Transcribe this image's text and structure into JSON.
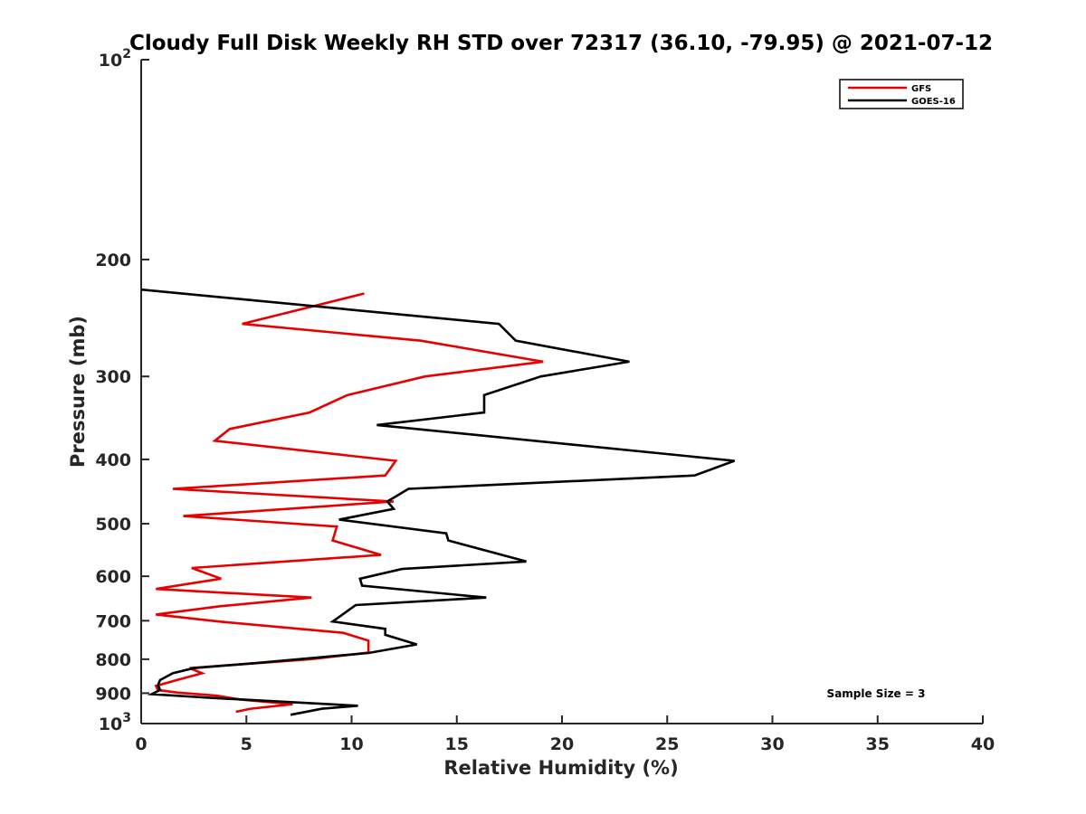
{
  "chart_data": {
    "type": "line",
    "title": "Cloudy Full Disk Weekly RH STD over 72317 (36.10, -79.95) @ 2021-07-12",
    "xlabel": "Relative Humidity (%)",
    "ylabel": "Pressure (mb)",
    "xlim": [
      0,
      40
    ],
    "ylim": [
      100,
      1000
    ],
    "y_scale": "log",
    "y_reversed": true,
    "x_ticks": [
      0,
      5,
      10,
      15,
      20,
      25,
      30,
      35,
      40
    ],
    "x_tick_labels": [
      "0",
      "5",
      "10",
      "15",
      "20",
      "25",
      "30",
      "35",
      "40"
    ],
    "y_ticks": [
      100,
      200,
      300,
      400,
      500,
      600,
      700,
      800,
      900,
      1000
    ],
    "y_tick_labels": [
      {
        "base": "10",
        "exp": "2"
      },
      {
        "base": "200",
        "exp": ""
      },
      {
        "base": "300",
        "exp": ""
      },
      {
        "base": "400",
        "exp": ""
      },
      {
        "base": "500",
        "exp": ""
      },
      {
        "base": "600",
        "exp": ""
      },
      {
        "base": "700",
        "exp": ""
      },
      {
        "base": "800",
        "exp": ""
      },
      {
        "base": "900",
        "exp": ""
      },
      {
        "base": "10",
        "exp": "3"
      }
    ],
    "grid": false,
    "legend_position": "top-right",
    "annotation": "Sample Size = 3",
    "series": [
      {
        "name": "GFS",
        "color": "#e60000",
        "points": [
          [
            10.6,
            225
          ],
          [
            4.8,
            250
          ],
          [
            13.3,
            265
          ],
          [
            19.1,
            285
          ],
          [
            13.5,
            300
          ],
          [
            9.8,
            320
          ],
          [
            8.0,
            340
          ],
          [
            4.2,
            360
          ],
          [
            3.5,
            375
          ],
          [
            12.1,
            402
          ],
          [
            11.6,
            423
          ],
          [
            1.5,
            443
          ],
          [
            12.0,
            463
          ],
          [
            2.0,
            487
          ],
          [
            9.3,
            505
          ],
          [
            9.1,
            530
          ],
          [
            11.4,
            557
          ],
          [
            2.4,
            583
          ],
          [
            3.8,
            605
          ],
          [
            0.7,
            627
          ],
          [
            8.1,
            646
          ],
          [
            3.7,
            666
          ],
          [
            0.7,
            685
          ],
          [
            3.7,
            702
          ],
          [
            9.6,
            730
          ],
          [
            10.8,
            750
          ],
          [
            10.8,
            782
          ],
          [
            8.0,
            800
          ],
          [
            2.3,
            825
          ],
          [
            2.9,
            840
          ],
          [
            1.7,
            860
          ],
          [
            0.7,
            878
          ],
          [
            0.8,
            890
          ],
          [
            1.7,
            898
          ],
          [
            3.6,
            908
          ],
          [
            4.7,
            920
          ],
          [
            7.2,
            935
          ],
          [
            5.2,
            950
          ],
          [
            4.5,
            960
          ]
        ]
      },
      {
        "name": "GOES-16",
        "color": "#000000",
        "points": [
          [
            0.0,
            222
          ],
          [
            17.0,
            250
          ],
          [
            17.8,
            265
          ],
          [
            23.2,
            285
          ],
          [
            19.0,
            300
          ],
          [
            16.3,
            320
          ],
          [
            16.3,
            340
          ],
          [
            11.2,
            355
          ],
          [
            28.2,
            402
          ],
          [
            26.3,
            423
          ],
          [
            12.7,
            443
          ],
          [
            11.7,
            463
          ],
          [
            12.0,
            475
          ],
          [
            9.4,
            493
          ],
          [
            14.5,
            517
          ],
          [
            14.6,
            530
          ],
          [
            18.3,
            570
          ],
          [
            12.4,
            585
          ],
          [
            10.4,
            605
          ],
          [
            10.5,
            620
          ],
          [
            16.4,
            646
          ],
          [
            10.2,
            663
          ],
          [
            9.1,
            702
          ],
          [
            11.6,
            720
          ],
          [
            11.6,
            735
          ],
          [
            13.1,
            760
          ],
          [
            10.8,
            783
          ],
          [
            5.6,
            810
          ],
          [
            2.5,
            825
          ],
          [
            1.5,
            840
          ],
          [
            0.9,
            860
          ],
          [
            0.8,
            875
          ],
          [
            0.9,
            890
          ],
          [
            0.5,
            903
          ],
          [
            3.4,
            915
          ],
          [
            10.3,
            940
          ],
          [
            8.6,
            950
          ],
          [
            7.1,
            970
          ]
        ]
      }
    ]
  }
}
